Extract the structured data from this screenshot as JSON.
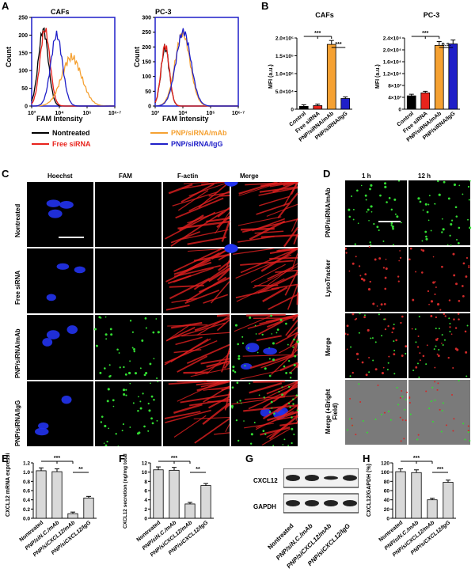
{
  "panels": {
    "A": "A",
    "B": "B",
    "C": "C",
    "D": "D",
    "E": "E",
    "F": "F",
    "G": "G",
    "H": "H"
  },
  "panelA": {
    "left_title": "CAFs",
    "right_title": "PC-3",
    "xlabel": "FAM Intensity",
    "ylabel": "Count",
    "yticks_left": [
      "0",
      "50",
      "100",
      "150",
      "200",
      "250"
    ],
    "yticks_right": [
      "0",
      "50",
      "100",
      "150",
      "200",
      "250",
      "300"
    ],
    "xticks": [
      "10³",
      "10⁴",
      "10⁵",
      "10⁶·⁷"
    ],
    "legend": [
      {
        "label": "Nontreated",
        "color": "#000000"
      },
      {
        "label": "Free siRNA",
        "color": "#e8231c"
      },
      {
        "label": "PNP/siRNA/mAb",
        "color": "#f5a132"
      },
      {
        "label": "PNP/siRNA/IgG",
        "color": "#1f1fc8"
      }
    ]
  },
  "chart_data": [
    {
      "type": "bar",
      "title": "CAFs",
      "ylabel": "MFI (a.u.)",
      "categories": [
        "Control",
        "Free siRNA",
        "PNP/siRNA/mAb",
        "PNP/siRNA/IgG"
      ],
      "values": [
        8000,
        10000,
        182000,
        30000
      ],
      "colors": [
        "#000000",
        "#e8231c",
        "#f5a132",
        "#1f1fc8"
      ],
      "ylim": [
        0,
        200000
      ],
      "yticks": [
        "0",
        "5.0×10⁴",
        "1.0×10⁵",
        "1.5×10⁵",
        "2.0×10⁵"
      ],
      "sig": [
        "***",
        "***"
      ]
    },
    {
      "type": "bar",
      "title": "PC-3",
      "ylabel": "MFI (a.u.)",
      "categories": [
        "Control",
        "Free siRNA",
        "PNP/siRNA/mAb",
        "PNP/siRNA/IgG"
      ],
      "values": [
        4500,
        5500,
        21500,
        22000
      ],
      "colors": [
        "#000000",
        "#e8231c",
        "#f5a132",
        "#1f1fc8"
      ],
      "ylim": [
        0,
        24000
      ],
      "yticks": [
        "0",
        "4×10³",
        "8×10³",
        "1.2×10⁴",
        "1.6×10⁴",
        "2.0×10⁴",
        "2.4×10⁴"
      ],
      "sig": [
        "***",
        "n.s."
      ]
    },
    {
      "type": "bar",
      "ylabel": "CXCL12 mRNA expression",
      "categories": [
        "Nontreated",
        "PNP/siN.C./mAb",
        "PNP/siCXCL12/mAb",
        "PNP/siCXCL12/IgG"
      ],
      "values": [
        1.03,
        1.01,
        0.1,
        0.44
      ],
      "ylim": [
        0,
        1.2
      ],
      "yticks": [
        "0.0",
        "0.2",
        "0.4",
        "0.6",
        "0.8",
        "1.0",
        "1.2"
      ],
      "sig": [
        "***",
        "**"
      ]
    },
    {
      "type": "bar",
      "ylabel": "CXCL12 secretion (ng/mg total protein)",
      "categories": [
        "Nontreated",
        "PNP/siN.C./mAb",
        "PNP/siCXCL12/mAb",
        "PNP/siCXCL12/IgG"
      ],
      "values": [
        10.5,
        10.4,
        3.1,
        7.1
      ],
      "ylim": [
        0,
        12
      ],
      "yticks": [
        "0",
        "2",
        "4",
        "6",
        "8",
        "10",
        "12"
      ],
      "sig": [
        "***",
        "**"
      ]
    },
    {
      "type": "bar",
      "ylabel": "CXCL12/GAPDH (%)",
      "categories": [
        "Nontreated",
        "PNP/siN.C./mAb",
        "PNP/siCXCL12/mAb",
        "PNP/siCXCL12/IgG"
      ],
      "values": [
        101,
        99,
        40,
        78
      ],
      "ylim": [
        0,
        120
      ],
      "yticks": [
        "0",
        "20",
        "40",
        "60",
        "80",
        "100",
        "120"
      ],
      "sig": [
        "***",
        "***"
      ]
    }
  ],
  "panelC": {
    "columns": [
      "Hoechst",
      "FAM",
      "F-actin",
      "Merge"
    ],
    "rows": [
      "Nontreated",
      "Free siRNA",
      "PNP/siRNA/mAb",
      "PNP/siRNA/IgG"
    ]
  },
  "panelD": {
    "columns": [
      "1 h",
      "12 h"
    ],
    "rows": [
      "PNP/siRNA/mAb",
      "LysoTracker",
      "Merge",
      "Merge (+Bright Field)"
    ]
  },
  "panelG": {
    "bands": [
      "CXCL12",
      "GAPDH"
    ],
    "lanes": [
      "Nontreated",
      "PNP/siN.C./mAb",
      "PNP/siCXCL12/mAb",
      "PNP/siCXCL12/IgG"
    ]
  }
}
